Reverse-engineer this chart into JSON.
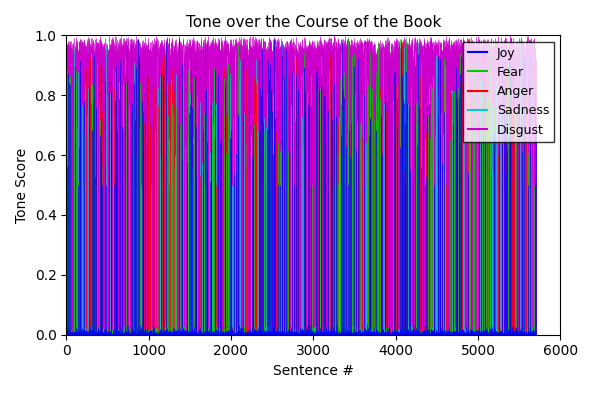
{
  "title": "Tone over the Course of the Book",
  "xlabel": "Sentence #",
  "ylabel": "Tone Score",
  "xlim": [
    0,
    6000
  ],
  "ylim": [
    0,
    1.0
  ],
  "n_sentences": 5700,
  "emotions": [
    "Joy",
    "Fear",
    "Anger",
    "Sadness",
    "Disgust"
  ],
  "colors": {
    "Joy": "#0000ff",
    "Fear": "#00cc00",
    "Anger": "#ff0000",
    "Sadness": "#00cccc",
    "Disgust": "#cc00cc"
  },
  "seed": 42,
  "background_color": "#ffffff",
  "title_fontsize": 11,
  "tick_fontsize": 10,
  "label_fontsize": 10
}
